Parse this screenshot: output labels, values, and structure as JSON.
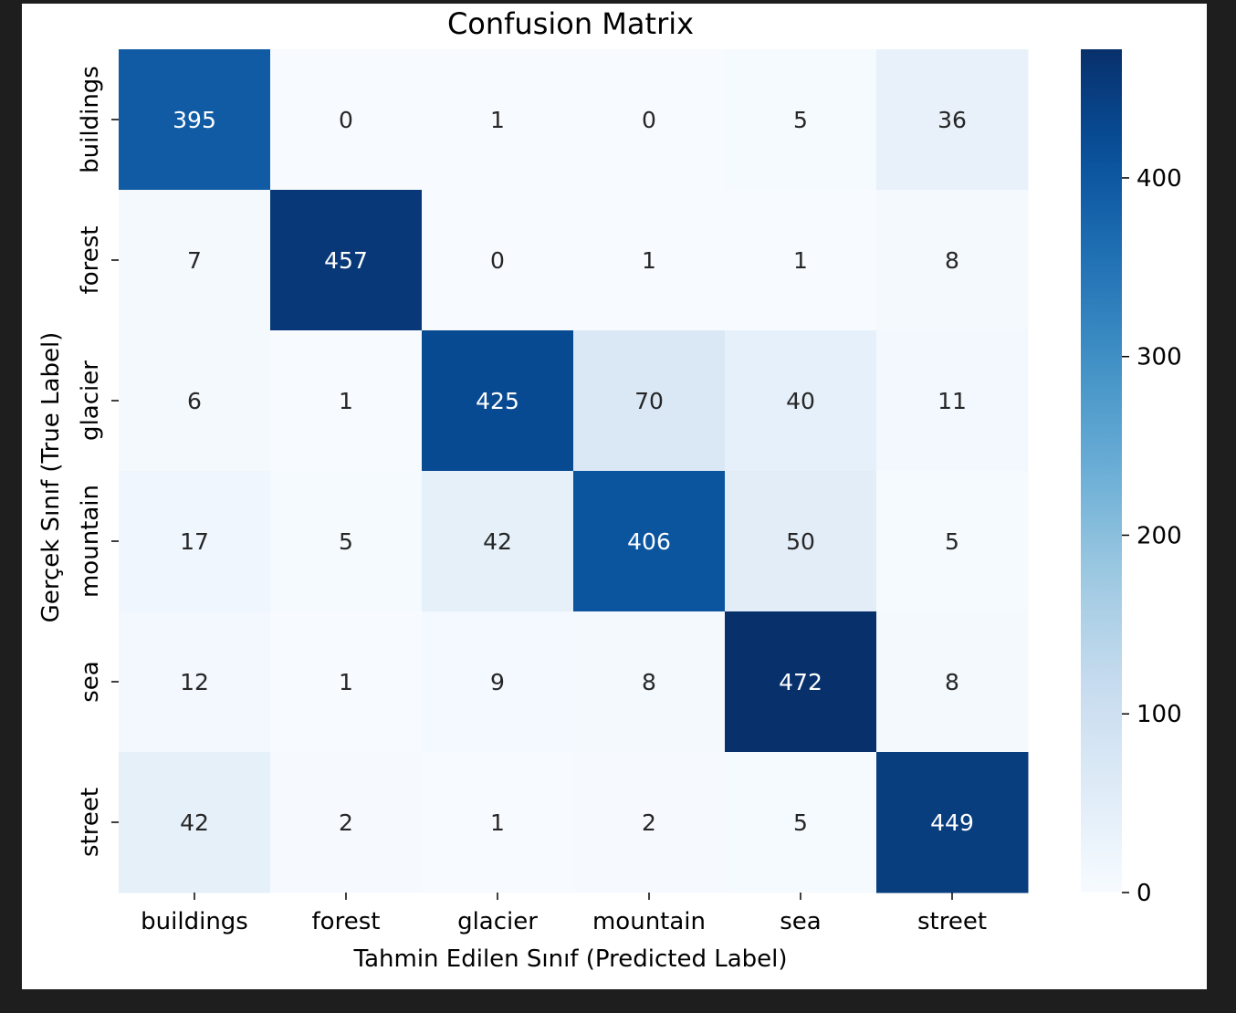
{
  "chart_data": {
    "type": "heatmap",
    "title": "Confusion Matrix",
    "xlabel": "Tahmin Edilen Sınıf (Predicted Label)",
    "ylabel": "Gerçek Sınıf (True Label)",
    "x_categories": [
      "buildings",
      "forest",
      "glacier",
      "mountain",
      "sea",
      "street"
    ],
    "y_categories": [
      "buildings",
      "forest",
      "glacier",
      "mountain",
      "sea",
      "street"
    ],
    "values": [
      [
        395,
        0,
        1,
        0,
        5,
        36
      ],
      [
        7,
        457,
        0,
        1,
        1,
        8
      ],
      [
        6,
        1,
        425,
        70,
        40,
        11
      ],
      [
        17,
        5,
        42,
        406,
        50,
        5
      ],
      [
        12,
        1,
        9,
        8,
        472,
        8
      ],
      [
        42,
        2,
        1,
        2,
        5,
        449
      ]
    ],
    "colormap": "Blues",
    "colorbar": {
      "range": [
        0,
        472
      ],
      "ticks": [
        0,
        100,
        200,
        300,
        400
      ]
    },
    "annotation_light_color": "#ffffff",
    "annotation_dark_color": "#262626"
  }
}
